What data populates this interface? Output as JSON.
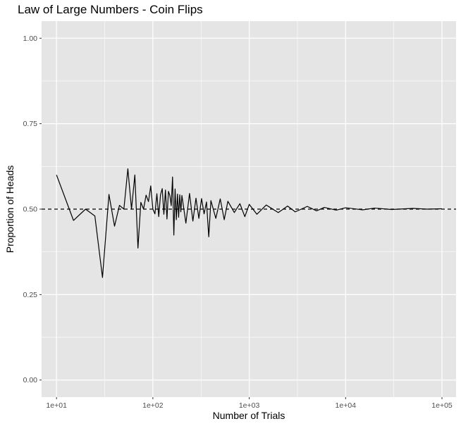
{
  "chart_data": {
    "type": "line",
    "title": "Law of Large Numbers - Coin Flips",
    "xlabel": "Number of Trials",
    "ylabel": "Proportion of Heads",
    "x_scale": "log10",
    "xlim": [
      7,
      140000
    ],
    "ylim": [
      -0.05,
      1.05
    ],
    "x_ticks": [
      10,
      100,
      1000,
      10000,
      100000
    ],
    "x_tick_labels": [
      "1e+01",
      "1e+02",
      "1e+03",
      "1e+04",
      "1e+05"
    ],
    "y_ticks": [
      0,
      0.25,
      0.5,
      0.75,
      1
    ],
    "y_tick_labels": [
      "0.00",
      "0.25",
      "0.50",
      "0.75",
      "1.00"
    ],
    "grid": true,
    "panel_background": "#e5e5e5",
    "grid_color": "#ffffff",
    "line_color": "#000000",
    "reference_line": {
      "y": 0.5,
      "style": "dashed",
      "color": "#000000"
    },
    "series": [
      {
        "x": [
          10,
          15,
          20,
          25,
          30,
          35,
          40,
          45,
          50,
          55,
          60,
          65,
          70,
          75,
          80,
          85,
          90,
          95,
          100,
          105,
          110,
          115,
          120,
          125,
          130,
          135,
          140,
          145,
          150,
          155,
          160,
          165,
          170,
          175,
          180,
          185,
          190,
          195,
          200,
          220,
          240,
          260,
          280,
          300,
          320,
          340,
          360,
          380,
          400,
          450,
          500,
          550,
          600,
          700,
          800,
          900,
          1000,
          1200,
          1500,
          2000,
          2500,
          3000,
          4000,
          5000,
          6000,
          8000,
          10000,
          15000,
          20000,
          30000,
          50000,
          70000,
          100000
        ],
        "y": [
          0.6,
          0.467,
          0.5,
          0.48,
          0.3,
          0.543,
          0.45,
          0.511,
          0.5,
          0.618,
          0.5,
          0.6,
          0.386,
          0.52,
          0.5,
          0.541,
          0.522,
          0.568,
          0.5,
          0.486,
          0.545,
          0.478,
          0.542,
          0.56,
          0.485,
          0.556,
          0.471,
          0.552,
          0.54,
          0.51,
          0.594,
          0.424,
          0.559,
          0.469,
          0.544,
          0.476,
          0.542,
          0.492,
          0.54,
          0.459,
          0.546,
          0.465,
          0.532,
          0.473,
          0.531,
          0.486,
          0.521,
          0.419,
          0.525,
          0.473,
          0.53,
          0.469,
          0.523,
          0.49,
          0.516,
          0.478,
          0.514,
          0.485,
          0.512,
          0.49,
          0.509,
          0.492,
          0.508,
          0.495,
          0.505,
          0.497,
          0.504,
          0.498,
          0.503,
          0.499,
          0.502,
          0.5,
          0.501
        ]
      }
    ]
  }
}
